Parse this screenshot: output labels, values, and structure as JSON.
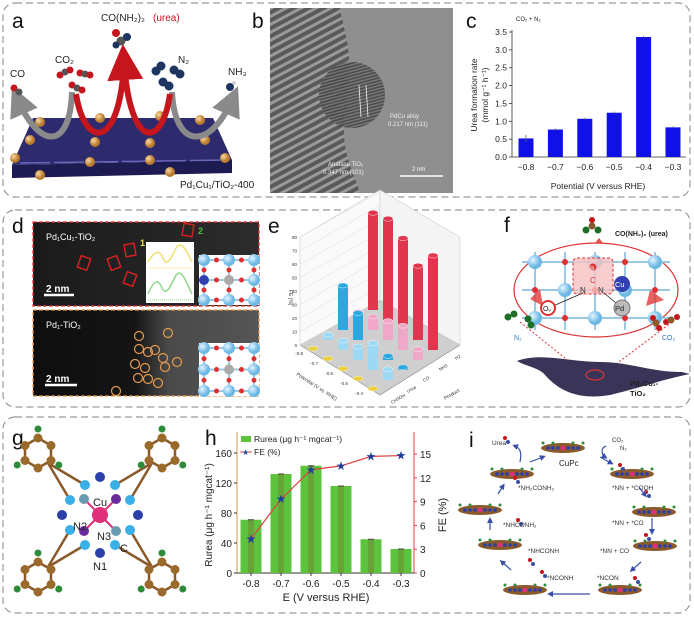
{
  "panel_letters": {
    "a": "a",
    "b": "b",
    "c": "c",
    "d": "d",
    "e": "e",
    "f": "f",
    "g": "g",
    "h": "h",
    "i": "i"
  },
  "panel_a": {
    "product": "CO(NH₂)₂",
    "product_note": "(urea)",
    "co": "CO",
    "co2": "CO₂",
    "n2": "N₂",
    "nh3": "NH₃",
    "catalyst": "Pd₁Cu₁/TiO₂-400"
  },
  "panel_b": {
    "alloy_label": "PdCu alloy",
    "alloy_spacing": "0.217 nm (111)",
    "tio2_label": "Anatase TiO₂",
    "tio2_spacing": "0.347 nm (101)",
    "scale": "2 nm"
  },
  "panel_d": {
    "top_label": "Pd₁Cu₁-TiO₂",
    "bottom_label": "Pd₁-TiO₂",
    "scale_top": "2 nm",
    "scale_bottom": "2 nm",
    "marker1": "1",
    "marker2": "2"
  },
  "panel_f": {
    "urea": "CO(NH₂)₂ (urea)",
    "n2": "N₂",
    "co2": "CO₂",
    "catalyst_line1": "Pd₁Cu₁-",
    "catalyst_line2": "TiO₂",
    "atom_c": "C",
    "atom_n1": "N",
    "atom_n2": "N",
    "atom_cu": "Cu",
    "atom_pd": "Pd",
    "atom_ov": "Oᵥ",
    "atom_o": "⊖"
  },
  "panel_g": {
    "cu": "Cu",
    "n1": "N1",
    "n2": "N2",
    "n3": "N3",
    "c": "C"
  },
  "panel_i": {
    "urea": "Urea",
    "cupc": "CuPc",
    "co2": "CO₂",
    "n2": "N₂",
    "intermediates": [
      "*NH₂CONH₂",
      "*NN + *COOH",
      "*NN + *CO",
      "*NHCONH₂",
      "*NN + CO",
      "*NHCONH",
      "*NCONH",
      "*NCON"
    ]
  },
  "colors": {
    "bar_c": "#1010e8",
    "bar_h": "#5cc43c",
    "fe_line": "#e04040",
    "fe_marker": "#1d3f9a",
    "slab": "#2d2a6e",
    "urea_red": "#c4161c"
  },
  "chart_data": [
    {
      "id": "c",
      "type": "bar",
      "title": "CO₂ + N₂",
      "categories": [
        "−0.8",
        "−0.7",
        "−0.6",
        "−0.5",
        "−0.4",
        "−0.3"
      ],
      "values": [
        0.52,
        0.77,
        1.07,
        1.24,
        3.36,
        0.83
      ],
      "errors": [
        0.1,
        0.03,
        0.03,
        0.03,
        0.03,
        0.03
      ],
      "xlabel": "Potential (V versus RHE)",
      "ylabel_line1": "Urea formation rate",
      "ylabel_line2": "(mmol g⁻¹ h⁻¹)",
      "ylim": [
        0,
        3.5
      ],
      "yticks": [
        "0.0",
        "0.5",
        "1.0",
        "1.5",
        "2.0",
        "2.5",
        "3.0",
        "3.5"
      ]
    },
    {
      "id": "e",
      "type": "bar3d",
      "zlabel": "FE (%)",
      "xlabel": "Potential (V vs. RHE)",
      "ylabel": "Product",
      "potentials": [
        "-0.8",
        "-0.7",
        "-0.6",
        "-0.5",
        "-0.4"
      ],
      "products": [
        "CH3OH",
        "Urea",
        "CO",
        "NH3",
        "H2"
      ],
      "zticks": [
        "0",
        "10",
        "20",
        "30",
        "40",
        "50",
        "60",
        "70",
        "80"
      ],
      "zlim": [
        0,
        80
      ],
      "series": [
        {
          "name": "CH3OH",
          "values": [
            1,
            1,
            1,
            1,
            1
          ]
        },
        {
          "name": "Urea",
          "values": [
            4,
            7,
            10,
            20,
            8
          ]
        },
        {
          "name": "CO",
          "values": [
            33,
            20,
            5,
            3,
            2
          ]
        },
        {
          "name": "NH3",
          "values": [
            6,
            10,
            14,
            18,
            8
          ]
        },
        {
          "name": "H2",
          "values": [
            72,
            75,
            68,
            55,
            70
          ]
        }
      ]
    },
    {
      "id": "h",
      "type": "bar+line",
      "categories": [
        "-0.8",
        "-0.7",
        "-0.6",
        "-0.5",
        "-0.4",
        "-0.3"
      ],
      "series": [
        {
          "name": "R_urea (μg h⁻¹ mg_cat⁻¹)",
          "legend": "Rurea (μg h⁻¹ mgcat⁻¹)",
          "type": "bar",
          "axis": "left",
          "values": [
            71,
            132,
            143,
            116,
            45,
            32
          ]
        },
        {
          "name": "FE (%)",
          "legend": "FE (%)",
          "type": "line",
          "axis": "right",
          "values": [
            4.3,
            9.3,
            13.0,
            13.5,
            14.7,
            14.8
          ]
        }
      ],
      "xlabel": "E (V versus RHE)",
      "ylabel": "Rurea (μg h⁻¹ mgcat⁻¹)",
      "y2label": "FE (%)",
      "ylim": [
        0,
        170
      ],
      "yticks": [
        "0",
        "40",
        "80",
        "120",
        "160"
      ],
      "y2lim": [
        0,
        17
      ],
      "y2ticks": [
        "0",
        "3",
        "6",
        "9",
        "12",
        "15"
      ]
    }
  ]
}
